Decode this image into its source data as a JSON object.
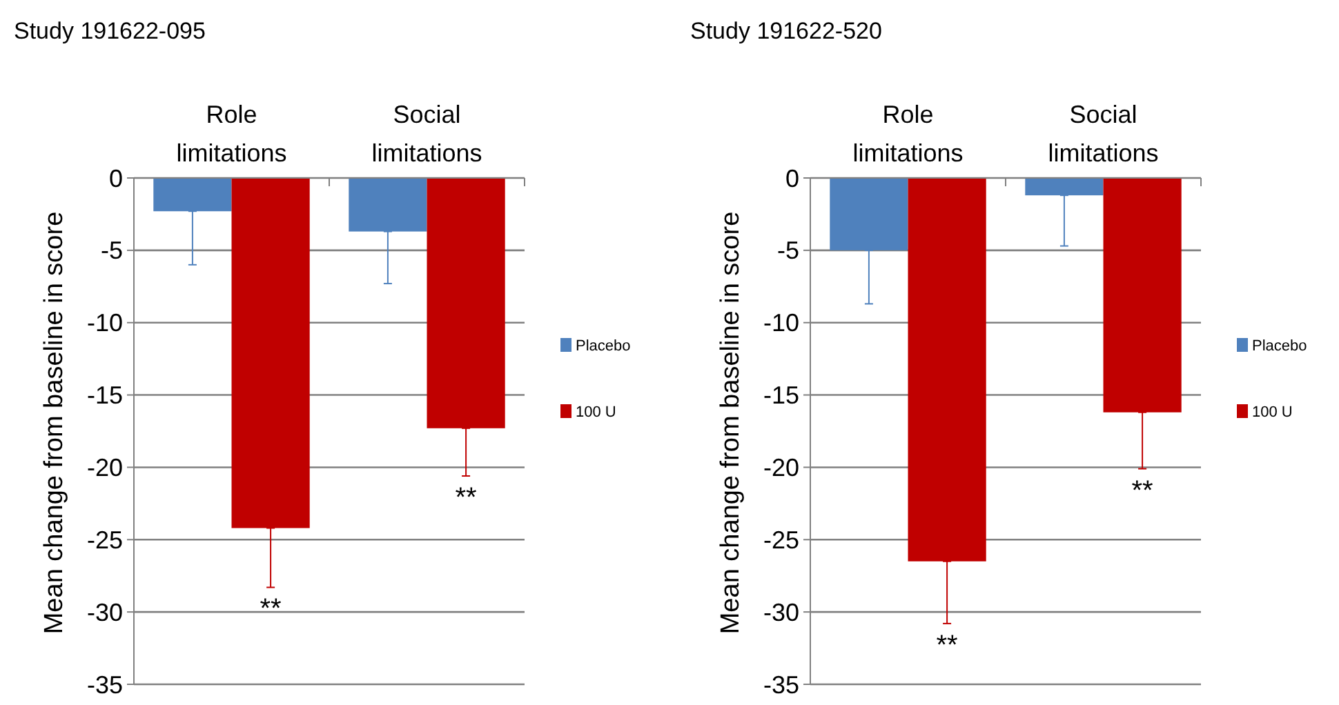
{
  "chart_data": [
    {
      "type": "bar",
      "title": "Study 191622-095",
      "ylabel": "Mean change from baseline in score",
      "categories": [
        "Role limitations",
        "Social limitations"
      ],
      "series": [
        {
          "name": "Placebo",
          "color": "#4f81bd",
          "values": [
            -2.3,
            -3.7
          ],
          "errors": [
            [
              -6.0,
              -2.3
            ],
            [
              -7.3,
              -3.7
            ]
          ]
        },
        {
          "name": "100 U",
          "color": "#c00000",
          "values": [
            -24.2,
            -17.3
          ],
          "errors": [
            [
              -28.3,
              -24.2
            ],
            [
              -20.6,
              -17.3
            ]
          ]
        }
      ],
      "annotations": [
        "**",
        "**"
      ],
      "ylim": [
        -35,
        0
      ],
      "yticks": [
        0,
        -5,
        -10,
        -15,
        -20,
        -25,
        -30,
        -35
      ],
      "grid": "y",
      "legend": "right"
    },
    {
      "type": "bar",
      "title": "Study 191622-520",
      "ylabel": "Mean change from baseline in score",
      "categories": [
        "Role limitations",
        "Social limitations"
      ],
      "series": [
        {
          "name": "Placebo",
          "color": "#4f81bd",
          "values": [
            -5.0,
            -1.2
          ],
          "errors": [
            [
              -8.7,
              -5.0
            ],
            [
              -4.7,
              -1.2
            ]
          ]
        },
        {
          "name": "100 U",
          "color": "#c00000",
          "values": [
            -26.5,
            -16.2
          ],
          "errors": [
            [
              -30.8,
              -26.5
            ],
            [
              -20.1,
              -16.2
            ]
          ]
        }
      ],
      "annotations": [
        "**",
        "**"
      ],
      "ylim": [
        -35,
        0
      ],
      "yticks": [
        0,
        -5,
        -10,
        -15,
        -20,
        -25,
        -30,
        -35
      ],
      "grid": "y",
      "legend": "right"
    }
  ]
}
